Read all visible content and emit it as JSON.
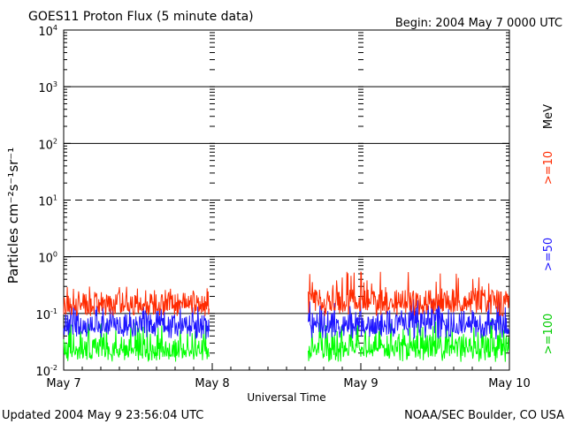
{
  "header": {
    "title": "GOES11 Proton Flux (5 minute data)",
    "begin": "Begin: 2004 May 7 0000 UTC"
  },
  "footer": {
    "updated": "Updated 2004 May  9 23:56:04 UTC",
    "credit": "NOAA/SEC Boulder, CO USA"
  },
  "colors": {
    "ge10": "#ff2a00",
    "ge50": "#1f16ff",
    "ge100": "#00ff00",
    "axis": "#000000"
  },
  "chart_data": {
    "type": "line",
    "title": "GOES11 Proton Flux (5 minute data)",
    "ylabel": "Particles cm⁻²s⁻¹sr⁻¹",
    "xlabel": "Universal Time",
    "x_tick_labels": [
      "May 7",
      "May 8",
      "May 9",
      "May 10"
    ],
    "x_range_hours": [
      0,
      72
    ],
    "yscale": "log",
    "ylim": [
      0.01,
      10000
    ],
    "y_tick_labels": [
      {
        "base": "10",
        "exp": "-2",
        "value": 0.01
      },
      {
        "base": "10",
        "exp": "-1",
        "value": 0.1
      },
      {
        "base": "10",
        "exp": "0",
        "value": 1
      },
      {
        "base": "10",
        "exp": "1",
        "value": 10
      },
      {
        "base": "10",
        "exp": "2",
        "value": 100
      },
      {
        "base": "10",
        "exp": "3",
        "value": 1000
      },
      {
        "base": "10",
        "exp": "4",
        "value": 10000
      }
    ],
    "reference_lines": [
      {
        "value": 0.1,
        "style": "solid"
      },
      {
        "value": 1,
        "style": "solid"
      },
      {
        "value": 10,
        "style": "dashed"
      },
      {
        "value": 100,
        "style": "solid"
      },
      {
        "value": 1000,
        "style": "solid"
      }
    ],
    "data_gap_hours": [
      23.5,
      39.5
    ],
    "series": [
      {
        "name": ">=10",
        "color": "#ff2a00",
        "segments": [
          {
            "start_hour": 0,
            "end_hour": 23.5,
            "typical": 0.16,
            "min": 0.09,
            "max": 0.3
          },
          {
            "start_hour": 39.5,
            "end_hour": 72,
            "typical": 0.17,
            "min": 0.09,
            "max": 0.55
          }
        ]
      },
      {
        "name": ">=50",
        "color": "#1f16ff",
        "segments": [
          {
            "start_hour": 0,
            "end_hour": 23.5,
            "typical": 0.065,
            "min": 0.035,
            "max": 0.14
          },
          {
            "start_hour": 39.5,
            "end_hour": 72,
            "typical": 0.07,
            "min": 0.035,
            "max": 0.18
          }
        ]
      },
      {
        "name": ">=100",
        "color": "#00ff00",
        "segments": [
          {
            "start_hour": 0,
            "end_hour": 23.5,
            "typical": 0.025,
            "min": 0.014,
            "max": 0.07
          },
          {
            "start_hour": 39.5,
            "end_hour": 72,
            "typical": 0.027,
            "min": 0.014,
            "max": 0.08
          }
        ]
      }
    ],
    "legend": {
      "unit": "MeV",
      "entries": [
        ">=10",
        ">=50",
        ">=100"
      ],
      "placement": "right"
    }
  }
}
